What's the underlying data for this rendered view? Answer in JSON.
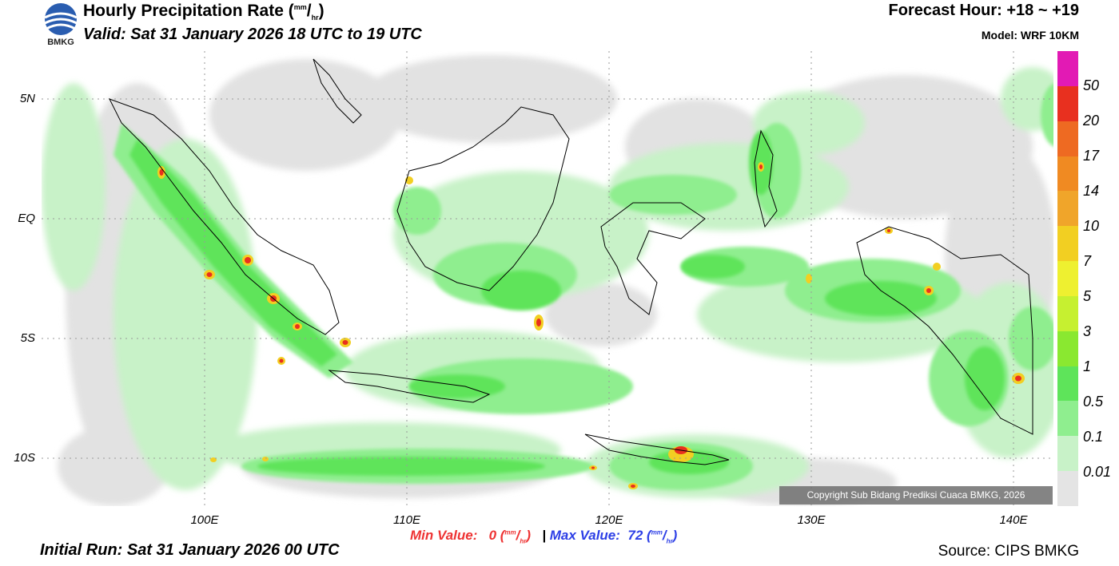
{
  "header": {
    "title_main": "Hourly Precipitation Rate (",
    "title_unit_num": "mm",
    "title_unit_slash": "/",
    "title_unit_den": "hr",
    "title_close": ")",
    "valid": "Valid: Sat 31 January 2026 18 UTC to 19 UTC",
    "forecast_hour": "Forecast Hour: +18 ~ +19",
    "model": "Model: WRF 10KM",
    "logo_text": "BMKG"
  },
  "axes": {
    "lat_labels": [
      "5N",
      "EQ",
      "5S",
      "10S"
    ],
    "lon_labels": [
      "100E",
      "110E",
      "120E",
      "130E",
      "140E"
    ]
  },
  "legend": {
    "labels": [
      "50",
      "20",
      "17",
      "14",
      "10",
      "7",
      "5",
      "3",
      "1",
      "0.5",
      "0.1",
      "0.01"
    ],
    "colors": [
      "#e21ab4",
      "#e8301f",
      "#ee6a22",
      "#f08a22",
      "#f0a52a",
      "#f2cf22",
      "#eef030",
      "#c6f030",
      "#8ae830",
      "#5ee45a",
      "#8fee8f",
      "#c8f2c8",
      "#e4e4e4"
    ]
  },
  "stats": {
    "min_label": "Min Value:",
    "min_value": "0",
    "max_label": "Max Value:",
    "max_value": "72",
    "separator": "|",
    "unit_num": "mm",
    "unit_den": "hr"
  },
  "footer": {
    "initial_run": "Initial Run: Sat 31 January 2026 00 UTC",
    "source": "Source: CIPS BMKG",
    "copyright": "Copyright Sub Bidang Prediksi Cuaca BMKG, 2026"
  }
}
